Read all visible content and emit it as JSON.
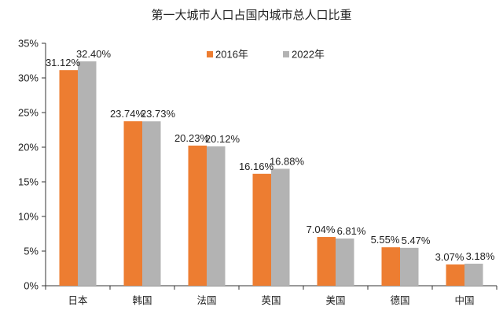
{
  "chart_data": {
    "type": "bar",
    "title": "第一大城市人口占国内城市总人口比重",
    "categories": [
      "日本",
      "韩国",
      "法国",
      "英国",
      "美国",
      "德国",
      "中国"
    ],
    "series": [
      {
        "name": "2016年",
        "color": "#ED7D31",
        "values": [
          31.12,
          23.74,
          20.23,
          16.16,
          7.04,
          5.55,
          3.07
        ],
        "labels": [
          "31.12%",
          "23.74%",
          "20.23%",
          "16.16%",
          "7.04%",
          "5.55%",
          "3.07%"
        ]
      },
      {
        "name": "2022年",
        "color": "#B3B3B3",
        "values": [
          32.4,
          23.73,
          20.12,
          16.88,
          6.81,
          5.47,
          3.18
        ],
        "labels": [
          "32.40%",
          "23.73%",
          "20.12%",
          "16.88%",
          "6.81%",
          "5.47%",
          "3.18%"
        ]
      }
    ],
    "yticks": [
      "0%",
      "5%",
      "10%",
      "15%",
      "20%",
      "25%",
      "30%",
      "35%"
    ],
    "ylim": [
      0,
      35
    ],
    "xlabel": "",
    "ylabel": "",
    "grid": false,
    "legend": "top-right"
  }
}
